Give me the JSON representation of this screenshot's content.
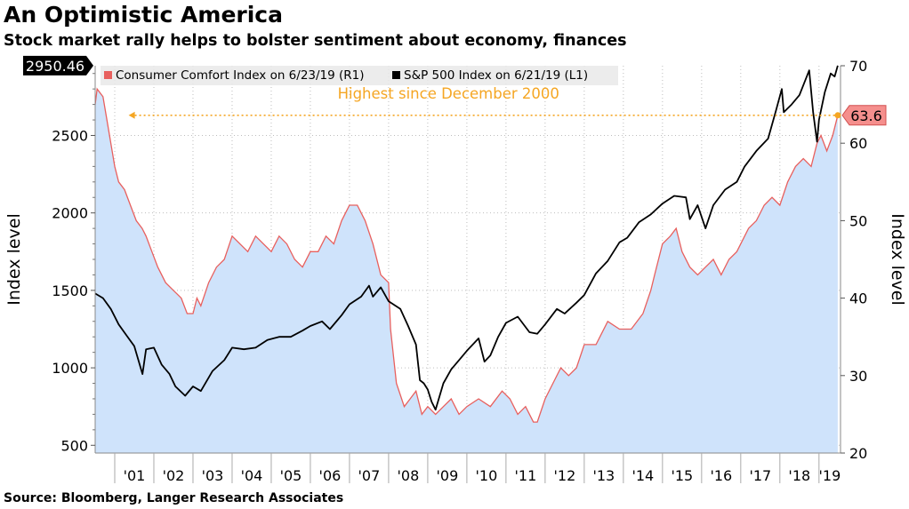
{
  "header": {
    "title": "An Optimistic America",
    "subtitle": "Stock market rally helps to bolster sentiment about economy, finances"
  },
  "footer": {
    "source": "Source: Bloomberg, Langer Research Associates"
  },
  "colors": {
    "sp500": "#000000",
    "comfort_line": "#e8605e",
    "comfort_fill": "#cfe3fb",
    "highlight": "#f5a623",
    "grid": "#bdbdbd"
  },
  "chart_data": {
    "type": "line",
    "title": "An Optimistic America",
    "subtitle": "Stock market rally helps to bolster sentiment about economy, finances",
    "x_axis": {
      "range": [
        2000.5,
        2019.55
      ],
      "tick_labels": [
        "'01",
        "'02",
        "'03",
        "'04",
        "'05",
        "'06",
        "'07",
        "'08",
        "'09",
        "'10",
        "'11",
        "'12",
        "'13",
        "'14",
        "'15",
        "'16",
        "'17",
        "'18",
        "'19"
      ],
      "tick_years": [
        2001,
        2002,
        2003,
        2004,
        2005,
        2006,
        2007,
        2008,
        2009,
        2010,
        2011,
        2012,
        2013,
        2014,
        2015,
        2016,
        2017,
        2018,
        2019
      ]
    },
    "y_left": {
      "label": "Index level",
      "range": [
        450,
        2950
      ],
      "ticks": [
        500,
        1000,
        1500,
        2000,
        2500
      ]
    },
    "y_right": {
      "label": "Index level",
      "range": [
        20,
        70
      ],
      "ticks": [
        20,
        30,
        40,
        50,
        60,
        70
      ]
    },
    "grid": true,
    "legend": {
      "position": "top-left"
    },
    "series": [
      {
        "name": "S&P 500 Index  on 6/21/19 (L1)",
        "axis": "left",
        "last_value_label": "2950.46",
        "x": [
          2000.5,
          2000.7,
          2000.9,
          2001.1,
          2001.3,
          2001.5,
          2001.71,
          2001.8,
          2002.0,
          2002.2,
          2002.4,
          2002.55,
          2002.8,
          2003.0,
          2003.2,
          2003.5,
          2003.8,
          2004.0,
          2004.3,
          2004.6,
          2004.9,
          2005.2,
          2005.5,
          2005.8,
          2006.0,
          2006.3,
          2006.5,
          2006.8,
          2007.0,
          2007.3,
          2007.5,
          2007.6,
          2007.8,
          2008.0,
          2008.3,
          2008.5,
          2008.7,
          2008.8,
          2008.9,
          2009.0,
          2009.1,
          2009.2,
          2009.4,
          2009.6,
          2009.8,
          2010.0,
          2010.3,
          2010.45,
          2010.6,
          2010.8,
          2011.0,
          2011.3,
          2011.6,
          2011.8,
          2012.0,
          2012.3,
          2012.5,
          2012.8,
          2013.0,
          2013.3,
          2013.6,
          2013.9,
          2014.1,
          2014.4,
          2014.7,
          2015.0,
          2015.3,
          2015.6,
          2015.7,
          2015.9,
          2016.1,
          2016.3,
          2016.6,
          2016.9,
          2017.1,
          2017.4,
          2017.7,
          2017.9,
          2018.05,
          2018.1,
          2018.3,
          2018.5,
          2018.75,
          2018.85,
          2018.95,
          2019.0,
          2019.15,
          2019.3,
          2019.4,
          2019.48
        ],
        "values": [
          1480,
          1450,
          1380,
          1280,
          1210,
          1140,
          960,
          1120,
          1130,
          1020,
          960,
          880,
          820,
          880,
          850,
          980,
          1050,
          1130,
          1120,
          1130,
          1180,
          1200,
          1200,
          1240,
          1270,
          1300,
          1250,
          1340,
          1410,
          1460,
          1530,
          1460,
          1520,
          1430,
          1380,
          1270,
          1150,
          920,
          900,
          860,
          780,
          730,
          900,
          990,
          1050,
          1110,
          1190,
          1040,
          1080,
          1200,
          1290,
          1330,
          1230,
          1220,
          1280,
          1380,
          1350,
          1420,
          1470,
          1610,
          1690,
          1810,
          1840,
          1940,
          1990,
          2060,
          2110,
          2100,
          1960,
          2050,
          1900,
          2050,
          2150,
          2200,
          2300,
          2400,
          2480,
          2660,
          2800,
          2650,
          2700,
          2760,
          2920,
          2650,
          2460,
          2600,
          2780,
          2900,
          2880,
          2950.46
        ]
      },
      {
        "name": "Consumer Comfort Index on 6/23/19 (R1)",
        "axis": "right",
        "last_value_label": "63.6",
        "x": [
          2000.5,
          2000.55,
          2000.7,
          2000.8,
          2000.9,
          2001.0,
          2001.1,
          2001.25,
          2001.4,
          2001.55,
          2001.7,
          2001.8,
          2001.95,
          2002.1,
          2002.3,
          2002.5,
          2002.7,
          2002.85,
          2003.0,
          2003.1,
          2003.2,
          2003.4,
          2003.6,
          2003.8,
          2004.0,
          2004.2,
          2004.4,
          2004.6,
          2004.8,
          2005.0,
          2005.2,
          2005.4,
          2005.6,
          2005.8,
          2006.0,
          2006.2,
          2006.4,
          2006.6,
          2006.8,
          2007.0,
          2007.2,
          2007.4,
          2007.6,
          2007.8,
          2008.0,
          2008.05,
          2008.2,
          2008.4,
          2008.55,
          2008.7,
          2008.85,
          2009.0,
          2009.2,
          2009.4,
          2009.6,
          2009.8,
          2010.0,
          2010.3,
          2010.6,
          2010.9,
          2011.1,
          2011.3,
          2011.5,
          2011.7,
          2011.8,
          2012.0,
          2012.2,
          2012.4,
          2012.6,
          2012.8,
          2013.0,
          2013.3,
          2013.6,
          2013.9,
          2014.2,
          2014.5,
          2014.7,
          2014.8,
          2015.0,
          2015.2,
          2015.35,
          2015.5,
          2015.7,
          2015.9,
          2016.1,
          2016.3,
          2016.5,
          2016.7,
          2016.9,
          2017.0,
          2017.2,
          2017.4,
          2017.6,
          2017.8,
          2018.0,
          2018.2,
          2018.4,
          2018.6,
          2018.8,
          2018.95,
          2019.05,
          2019.2,
          2019.35,
          2019.48
        ],
        "values": [
          65,
          67,
          66,
          63,
          60,
          57,
          55,
          54,
          52,
          50,
          49,
          48,
          46,
          44,
          42,
          41,
          40,
          38,
          38,
          40,
          39,
          42,
          44,
          45,
          48,
          47,
          46,
          48,
          47,
          46,
          48,
          47,
          45,
          44,
          46,
          46,
          48,
          47,
          50,
          52,
          52,
          50,
          47,
          43,
          42,
          36,
          29,
          26,
          27,
          28,
          25,
          26,
          25,
          26,
          27,
          25,
          26,
          27,
          26,
          28,
          27,
          25,
          26,
          24,
          24,
          27,
          29,
          31,
          30,
          31,
          34,
          34,
          37,
          36,
          36,
          38,
          41,
          43,
          47,
          48,
          49,
          46,
          44,
          43,
          44,
          45,
          43,
          45,
          46,
          47,
          49,
          50,
          52,
          53,
          52,
          55,
          57,
          58,
          57,
          60,
          61,
          59,
          61,
          63.6
        ]
      }
    ],
    "annotations": [
      {
        "text": "Highest since December 2000"
      }
    ]
  }
}
